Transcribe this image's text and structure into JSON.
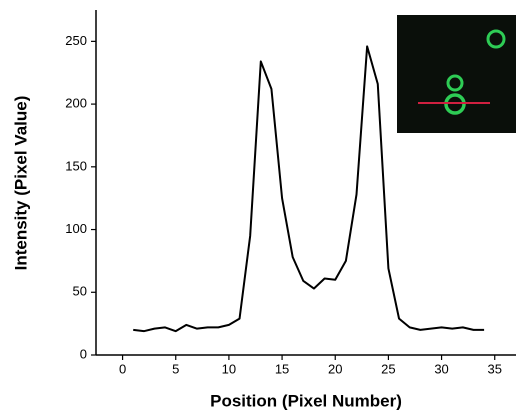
{
  "chart_data": {
    "type": "line",
    "x_label": "Position (Pixel Number)",
    "y_label": "Intensity (Pixel Value)",
    "x": [
      1,
      2,
      3,
      4,
      5,
      6,
      7,
      8,
      9,
      10,
      11,
      12,
      13,
      14,
      15,
      16,
      17,
      18,
      19,
      20,
      21,
      22,
      23,
      24,
      25,
      26,
      27,
      28,
      29,
      30,
      31,
      32,
      33,
      34
    ],
    "series": [
      {
        "color": "#000000",
        "values": [
          20,
          19,
          21,
          22,
          19,
          24,
          21,
          22,
          22,
          24,
          29,
          95,
          234,
          212,
          125,
          78,
          59,
          53,
          61,
          60,
          75,
          128,
          246,
          216,
          69,
          29,
          22,
          20,
          21,
          22,
          21,
          22,
          20,
          20
        ]
      }
    ],
    "xlim": [
      -2.5,
      37
    ],
    "ylim": [
      0,
      275
    ],
    "xticks": [
      0,
      5,
      10,
      15,
      20,
      25,
      30,
      35
    ],
    "yticks": [
      0,
      50,
      100,
      150,
      200,
      250
    ]
  }
}
